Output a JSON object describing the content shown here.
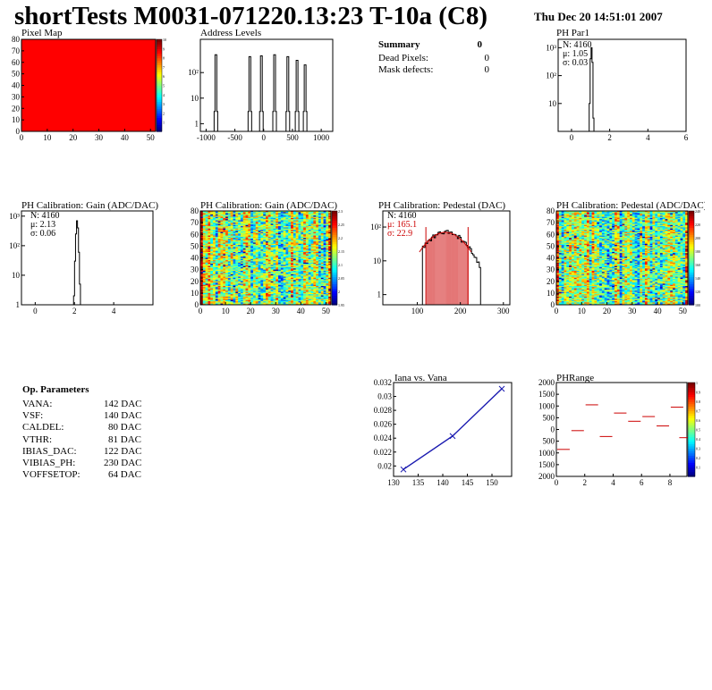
{
  "page": {
    "title": "shortTests M0031-071220.13:23 T-10a (C8)",
    "date": "Thu Dec 20 14:51:01 2007"
  },
  "summary": {
    "title": "Summary",
    "title_value": "0",
    "rows": [
      {
        "label": "Dead Pixels:",
        "value": "0"
      },
      {
        "label": "Mask defects:",
        "value": "0"
      }
    ]
  },
  "op_params": {
    "title": "Op. Parameters",
    "rows": [
      {
        "label": "VANA:",
        "value": "142 DAC"
      },
      {
        "label": "VSF:",
        "value": "140 DAC"
      },
      {
        "label": "CALDEL:",
        "value": "80 DAC"
      },
      {
        "label": "VTHR:",
        "value": "81 DAC"
      },
      {
        "label": "IBIAS_DAC:",
        "value": "122 DAC"
      },
      {
        "label": "VIBIAS_PH:",
        "value": "230 DAC"
      },
      {
        "label": "VOFFSETOP:",
        "value": "64 DAC"
      }
    ]
  },
  "colors": {
    "hist_line": "#000000",
    "fit_red": "#cc0000",
    "iana_line": "#1a1ab0",
    "pixel_map_fill": "#ff0000"
  },
  "chart_data": [
    {
      "id": "pixel_map",
      "type": "heatmap",
      "title": "Pixel Map",
      "xlim": [
        0,
        52
      ],
      "ylim": [
        0,
        80
      ],
      "xticks": [
        "0",
        "10",
        "20",
        "30",
        "40",
        "50"
      ],
      "yticks": [
        "0",
        "10",
        "20",
        "30",
        "40",
        "50",
        "60",
        "70",
        "80"
      ],
      "uniform_value": 10,
      "colorbar": {
        "min": 0,
        "max": 10,
        "ticks": [
          "1",
          "2",
          "3",
          "4",
          "5",
          "6",
          "7",
          "8",
          "9",
          "10"
        ]
      }
    },
    {
      "id": "address_levels",
      "type": "bar",
      "title": "Address Levels",
      "xlim": [
        -1100,
        1200
      ],
      "ylim": [
        0.5,
        2000
      ],
      "ylog": true,
      "xticks": [
        "-1000",
        "-500",
        "0",
        "500",
        "1000"
      ],
      "yticks": [
        "1",
        "10",
        "10²"
      ],
      "peaks": [
        {
          "x": -830,
          "y": 500
        },
        {
          "x": -240,
          "y": 420
        },
        {
          "x": -40,
          "y": 450
        },
        {
          "x": 190,
          "y": 500
        },
        {
          "x": 420,
          "y": 420
        },
        {
          "x": 580,
          "y": 300
        },
        {
          "x": 720,
          "y": 200
        }
      ]
    },
    {
      "id": "ph_par1",
      "type": "bar",
      "title": "PH Par1",
      "xlim": [
        -0.7,
        6
      ],
      "ylim": [
        1,
        2000
      ],
      "ylog": true,
      "xticks": [
        "0",
        "2",
        "4",
        "6"
      ],
      "yticks": [
        "10",
        "10²",
        "10³"
      ],
      "stats": {
        "N": "N: 4160",
        "mean": "μ: 1.05",
        "sigma": "σ: 0.03"
      },
      "bins": [
        {
          "x": 0.95,
          "y": 10
        },
        {
          "x": 1.0,
          "y": 400
        },
        {
          "x": 1.05,
          "y": 1000
        },
        {
          "x": 1.1,
          "y": 300
        },
        {
          "x": 1.15,
          "y": 3
        }
      ]
    },
    {
      "id": "gain_dist",
      "type": "bar",
      "title": "PH Calibration: Gain (ADC/DAC)",
      "xlim": [
        -0.7,
        6
      ],
      "ylim": [
        1,
        1500
      ],
      "ylog": true,
      "xticks": [
        "0",
        "2",
        "4"
      ],
      "yticks": [
        "1",
        "10",
        "10²",
        "10³"
      ],
      "stats": {
        "N": "N: 4160",
        "mean": "μ: 2.13",
        "sigma": "σ: 0.06"
      },
      "bins": [
        {
          "x": 1.98,
          "y": 2
        },
        {
          "x": 2.03,
          "y": 30
        },
        {
          "x": 2.08,
          "y": 250
        },
        {
          "x": 2.13,
          "y": 700
        },
        {
          "x": 2.18,
          "y": 400
        },
        {
          "x": 2.23,
          "y": 60
        },
        {
          "x": 2.28,
          "y": 5
        }
      ]
    },
    {
      "id": "gain_map",
      "type": "heatmap",
      "title": "PH Calibration: Gain (ADC/DAC)",
      "xlim": [
        0,
        52
      ],
      "ylim": [
        0,
        80
      ],
      "xticks": [
        "0",
        "10",
        "20",
        "30",
        "40",
        "50"
      ],
      "yticks": [
        "0",
        "10",
        "20",
        "30",
        "40",
        "50",
        "60",
        "70",
        "80"
      ],
      "value_range": [
        1.95,
        2.3
      ],
      "colorbar": {
        "min": 1.95,
        "max": 2.3,
        "ticks": [
          "1.95",
          "2",
          "2.05",
          "2.1",
          "2.15",
          "2.2",
          "2.25",
          "2.3"
        ]
      }
    },
    {
      "id": "pedestal_dist",
      "type": "bar",
      "title": "PH Calibration: Pedestal (DAC)",
      "xlim": [
        20,
        315
      ],
      "ylim": [
        0.5,
        300
      ],
      "ylog": true,
      "xticks": [
        "100",
        "200",
        "300"
      ],
      "yticks": [
        "1",
        "10",
        "10²"
      ],
      "stats": {
        "N": "N: 4160",
        "mean": "μ: 165.1",
        "sigma": "σ: 22.9"
      },
      "gauss": {
        "mean": 165.1,
        "sigma": 22.9,
        "peak": 70
      },
      "fit_lines": [
        120,
        218
      ]
    },
    {
      "id": "pedestal_map",
      "type": "heatmap",
      "title": "PH Calibration: Pedestal (ADC/DAC)",
      "xlim": [
        0,
        52
      ],
      "ylim": [
        0,
        80
      ],
      "xticks": [
        "0",
        "10",
        "20",
        "30",
        "40",
        "50"
      ],
      "yticks": [
        "0",
        "10",
        "20",
        "30",
        "40",
        "50",
        "60",
        "70",
        "80"
      ],
      "value_range": [
        100,
        240
      ],
      "colorbar": {
        "min": 100,
        "max": 240,
        "ticks": [
          "100",
          "120",
          "140",
          "160",
          "180",
          "200",
          "220",
          "240"
        ]
      }
    },
    {
      "id": "iana_vana",
      "type": "line",
      "title": "Iana vs. Vana",
      "xlim": [
        130,
        154
      ],
      "ylim": [
        0.0185,
        0.032
      ],
      "xticks": [
        "130",
        "135",
        "140",
        "145",
        "150"
      ],
      "yticks": [
        "0.02",
        "0.022",
        "0.024",
        "0.026",
        "0.028",
        "0.03",
        "0.032"
      ],
      "x": [
        132,
        142,
        152
      ],
      "y": [
        0.0195,
        0.0243,
        0.0311
      ]
    },
    {
      "id": "ph_range",
      "type": "scatter",
      "title": "PHRange",
      "xlim": [
        0,
        9.2
      ],
      "ylim": [
        -2000,
        2000
      ],
      "xticks": [
        "0",
        "2",
        "4",
        "6",
        "8"
      ],
      "yticks": [
        "2000",
        "1500",
        "1000",
        "500",
        "0",
        "500",
        "1000",
        "1500",
        "2000"
      ],
      "segments": [
        {
          "x": 0.5,
          "y": -850
        },
        {
          "x": 1.5,
          "y": -50
        },
        {
          "x": 2.5,
          "y": 1050
        },
        {
          "x": 3.5,
          "y": -300
        },
        {
          "x": 4.5,
          "y": 700
        },
        {
          "x": 5.5,
          "y": 350
        },
        {
          "x": 6.5,
          "y": 550
        },
        {
          "x": 7.5,
          "y": 150
        },
        {
          "x": 8.5,
          "y": 950
        },
        {
          "x": 9.1,
          "y": -350
        }
      ],
      "colorbar": {
        "min": 0,
        "max": 1,
        "ticks": [
          "0.1",
          "0.2",
          "0.3",
          "0.4",
          "0.5",
          "0.6",
          "0.7",
          "0.8",
          "0.9",
          "1"
        ]
      }
    }
  ]
}
